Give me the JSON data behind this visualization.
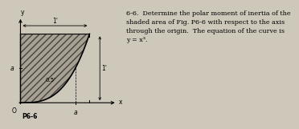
{
  "bg_color": "#cec8ba",
  "shaded_fill": "#a8a090",
  "shaded_edge": "#444444",
  "curve_color": "#000000",
  "axis_color": "#000000",
  "title_label": "P6-6",
  "problem_text_lines": [
    "6-6.  Determine the polar moment of inertia of the",
    "shaded area of Fig. P6-6 with respect to the axis",
    "through the origin.  The equation of the curve is",
    "y = x³."
  ],
  "dim_1_top": "1'",
  "dim_1_right": "1'",
  "dim_05": "0.5'",
  "label_a": "a",
  "label_y": "y",
  "label_x": "x",
  "label_O": "O"
}
